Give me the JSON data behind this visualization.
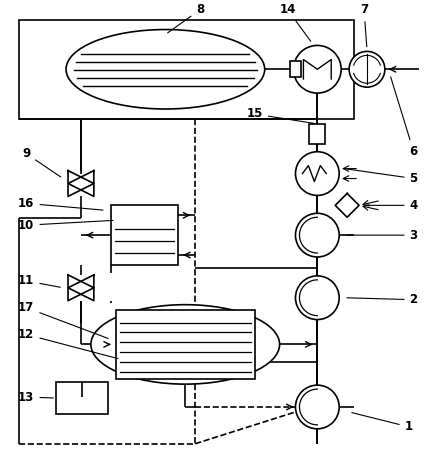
{
  "bg_color": "#ffffff",
  "line_color": "#000000",
  "lw": 1.2,
  "fig_width": 4.38,
  "fig_height": 4.63,
  "dpi": 100
}
